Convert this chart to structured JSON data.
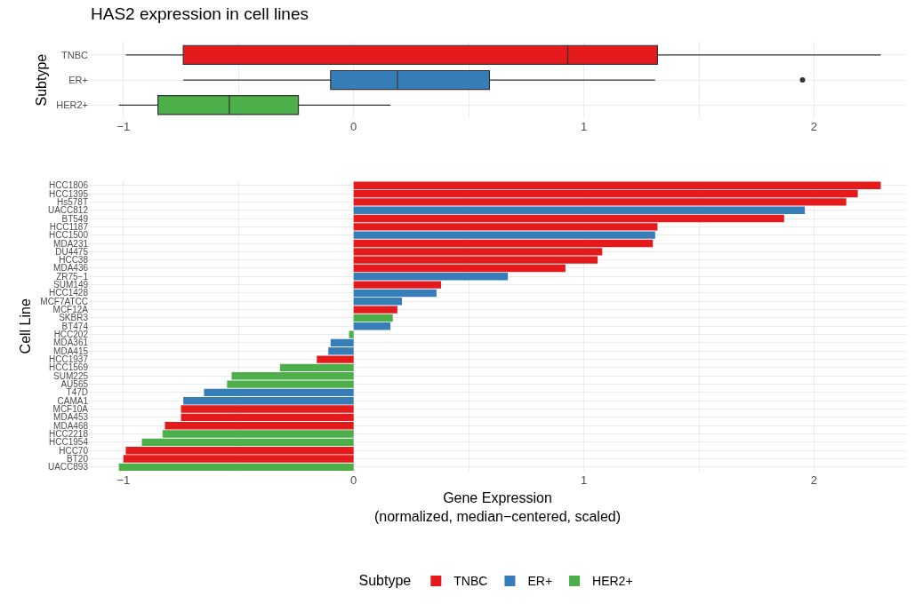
{
  "chart_data": [
    {
      "type": "box",
      "title": "HAS2 expression in cell lines",
      "ylabel": "Subtype",
      "categories": [
        "TNBC",
        "ER+",
        "HER2+"
      ],
      "colors": [
        "#e41a1c",
        "#377eb8",
        "#4daf4a"
      ],
      "boxes": [
        {
          "low": -0.99,
          "q1": -0.74,
          "median": 0.93,
          "q3": 1.32,
          "high": 2.29
        },
        {
          "low": -0.74,
          "q1": -0.1,
          "median": 0.19,
          "q3": 0.59,
          "high": 1.31,
          "outliers": [
            1.95
          ]
        },
        {
          "low": -1.02,
          "q1": -0.85,
          "median": -0.54,
          "q3": -0.24,
          "high": 0.16
        }
      ],
      "orientation": "horizontal",
      "xlim": [
        -1.15,
        2.4
      ],
      "xticks": [
        -1,
        {
          "value": -0.5,
          "label": null
        },
        0,
        {
          "value": 0.5,
          "label": null
        },
        1,
        {
          "value": 1.5,
          "label": null
        },
        2
      ],
      "grid": true,
      "legend": false
    },
    {
      "type": "bar",
      "orientation": "horizontal",
      "xlabel": "Gene Expression\n(normalized, median−centered, scaled)",
      "ylabel": "Cell Line",
      "categories": [
        "HCC1806",
        "HCC1395",
        "Hs578T",
        "UACC812",
        "BT549",
        "HCC1187",
        "HCC1500",
        "MDA231",
        "DU4475",
        "HCC38",
        "MDA436",
        "ZR75−1",
        "SUM149",
        "HCC1428",
        "MCF7ATCC",
        "MCF12A",
        "SKBR3",
        "BT474",
        "HCC202",
        "MDA361",
        "MDA415",
        "HCC1937",
        "HCC1569",
        "SUM225",
        "AU565",
        "T47D",
        "CAMA1",
        "MCF10A",
        "MDA453",
        "MDA468",
        "HCC2218",
        "HCC1954",
        "HCC70",
        "BT20",
        "UACC893"
      ],
      "series": [
        {
          "name": "TNBC",
          "color": "#e41a1c",
          "values": [
            2.29,
            2.19,
            2.14,
            null,
            1.87,
            1.32,
            null,
            1.3,
            1.08,
            1.06,
            0.92,
            null,
            0.38,
            null,
            null,
            0.19,
            null,
            null,
            null,
            null,
            null,
            -0.16,
            null,
            null,
            null,
            null,
            null,
            -0.75,
            -0.75,
            -0.82,
            null,
            null,
            -0.99,
            -1.0,
            null
          ]
        },
        {
          "name": "ER+",
          "color": "#377eb8",
          "values": [
            null,
            null,
            null,
            1.96,
            null,
            null,
            1.31,
            null,
            null,
            null,
            null,
            0.67,
            null,
            0.36,
            0.21,
            null,
            null,
            0.16,
            null,
            -0.1,
            -0.11,
            null,
            null,
            null,
            null,
            -0.65,
            -0.74,
            null,
            null,
            null,
            null,
            null,
            null,
            null,
            null
          ]
        },
        {
          "name": "HER2+",
          "color": "#4daf4a",
          "values": [
            null,
            null,
            null,
            null,
            null,
            null,
            null,
            null,
            null,
            null,
            null,
            null,
            null,
            null,
            null,
            null,
            0.17,
            null,
            -0.02,
            null,
            null,
            null,
            -0.32,
            -0.53,
            -0.55,
            null,
            null,
            null,
            null,
            null,
            -0.83,
            -0.92,
            null,
            null,
            -1.02
          ]
        }
      ],
      "xlim": [
        -1.15,
        2.4
      ],
      "xticks": [
        -1,
        {
          "value": -0.5,
          "label": null
        },
        0,
        {
          "value": 0.5,
          "label": null
        },
        1,
        {
          "value": 1.5,
          "label": null
        },
        2
      ],
      "grid": true,
      "legend": "bottom",
      "legend_title": "Subtype"
    }
  ]
}
